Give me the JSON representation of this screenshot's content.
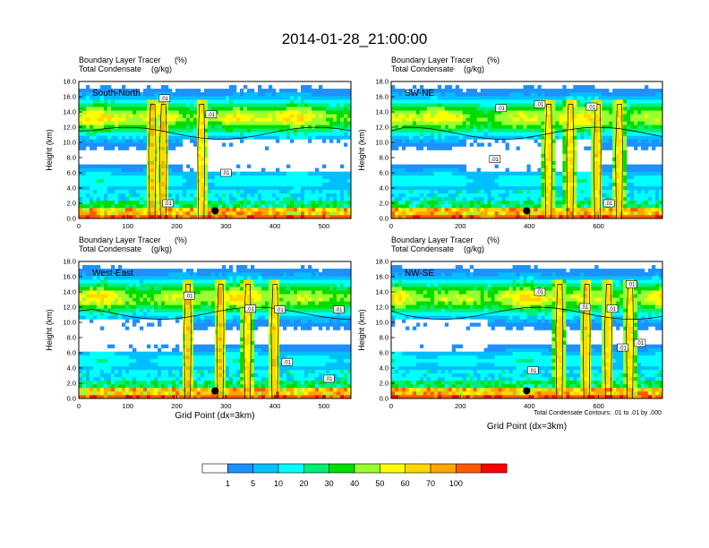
{
  "title": "2014-01-28_21:00:00",
  "colors": {
    "levels": [
      "#ffffff",
      "#1e90ff",
      "#00bfff",
      "#00ffff",
      "#00ee76",
      "#00dd00",
      "#9aff32",
      "#ffff00",
      "#ffd700",
      "#ffa500",
      "#ff5a00",
      "#ff0000"
    ],
    "axis": "#000000",
    "contour": "#000000"
  },
  "chart_data": [
    {
      "type": "heatmap",
      "panel_label": "South-North",
      "subtitle_left_line1": "Boundary Layer Tracer",
      "subtitle_left_line2": "Total Condensate",
      "subtitle_unit_line1": "(%)",
      "subtitle_unit_line2": "(g/kg)",
      "xlabel": "",
      "ylabel": "Height (km)",
      "xlim": [
        0,
        555
      ],
      "ylim": [
        0,
        18
      ],
      "xticks": [
        "0",
        "100",
        "200",
        "300",
        "400",
        "500"
      ],
      "yticks": [
        "0.0",
        "2.0",
        "4.0",
        "6.0",
        "8.0",
        "10.0",
        "12.0",
        "14.0",
        "16.0",
        "18.0"
      ],
      "marker": {
        "x": 278,
        "y": 1.0
      },
      "contour_labels": [
        {
          "text": ".01",
          "x": 270,
          "y": 13.7
        },
        {
          "text": ".01",
          "x": 300,
          "y": 6.0
        },
        {
          "text": ".01",
          "x": 175,
          "y": 15.8
        },
        {
          "text": ".01",
          "x": 182,
          "y": 2.0
        }
      ]
    },
    {
      "type": "heatmap",
      "panel_label": "SW-NE",
      "subtitle_left_line1": "Boundary Layer Tracer",
      "subtitle_left_line2": "Total Condensate",
      "subtitle_unit_line1": "(%)",
      "subtitle_unit_line2": "(g/kg)",
      "xlabel": "",
      "ylabel": "Height (km)",
      "xlim": [
        0,
        785
      ],
      "ylim": [
        0,
        18
      ],
      "xticks": [
        "0",
        "200",
        "400",
        "600"
      ],
      "yticks": [
        "0.0",
        "2.0",
        "4.0",
        "6.0",
        "8.0",
        "10.0",
        "12.0",
        "14.0",
        "16.0",
        "18.0"
      ],
      "marker": {
        "x": 392,
        "y": 1.0
      },
      "contour_labels": [
        {
          "text": ".01",
          "x": 318,
          "y": 14.5
        },
        {
          "text": ".01",
          "x": 430,
          "y": 15.0
        },
        {
          "text": ".01",
          "x": 580,
          "y": 14.7
        },
        {
          "text": ".01",
          "x": 300,
          "y": 7.8
        },
        {
          "text": ".01",
          "x": 630,
          "y": 2.0
        }
      ]
    },
    {
      "type": "heatmap",
      "panel_label": "West-East",
      "subtitle_left_line1": "Boundary Layer Tracer",
      "subtitle_left_line2": "Total Condensate",
      "subtitle_unit_line1": "(%)",
      "subtitle_unit_line2": "(g/kg)",
      "xlabel": "Grid Point (dx=3km)",
      "ylabel": "Height (km)",
      "xlim": [
        0,
        555
      ],
      "ylim": [
        0,
        18
      ],
      "xticks": [
        "0",
        "100",
        "200",
        "300",
        "400",
        "500"
      ],
      "yticks": [
        "0.0",
        "2.0",
        "4.0",
        "6.0",
        "8.0",
        "10.0",
        "12.0",
        "14.0",
        "16.0",
        "18.0"
      ],
      "marker": {
        "x": 278,
        "y": 1.0
      },
      "contour_labels": [
        {
          "text": ".01",
          "x": 225,
          "y": 13.5
        },
        {
          "text": ".01",
          "x": 350,
          "y": 11.8
        },
        {
          "text": ".01",
          "x": 410,
          "y": 11.7
        },
        {
          "text": ".01",
          "x": 530,
          "y": 11.7
        },
        {
          "text": ".01",
          "x": 425,
          "y": 4.8
        },
        {
          "text": ".01",
          "x": 510,
          "y": 2.6
        }
      ]
    },
    {
      "type": "heatmap",
      "panel_label": "NW-SE",
      "subtitle_left_line1": "Boundary Layer Tracer",
      "subtitle_left_line2": "Total Condensate",
      "subtitle_unit_line1": "(%)",
      "subtitle_unit_line2": "(g/kg)",
      "xlabel": "Grid Point (dx=3km)",
      "ylabel": "Height (km)",
      "xlim": [
        0,
        785
      ],
      "ylim": [
        0,
        18
      ],
      "xticks": [
        "0",
        "200",
        "400",
        "600"
      ],
      "yticks": [
        "0.0",
        "2.0",
        "4.0",
        "6.0",
        "8.0",
        "10.0",
        "12.0",
        "14.0",
        "16.0",
        "18.0"
      ],
      "marker": {
        "x": 392,
        "y": 1.0
      },
      "contour_labels": [
        {
          "text": ".01",
          "x": 430,
          "y": 14.0
        },
        {
          "text": ".01",
          "x": 560,
          "y": 12.0
        },
        {
          "text": ".01",
          "x": 640,
          "y": 11.8
        },
        {
          "text": ".01",
          "x": 695,
          "y": 15.0
        },
        {
          "text": ".01",
          "x": 670,
          "y": 6.7
        },
        {
          "text": ".01",
          "x": 410,
          "y": 3.7
        },
        {
          "text": ".01",
          "x": 720,
          "y": 7.3
        }
      ]
    }
  ],
  "contour_note": "Total Condensate Contours: .01 to .01 by .000",
  "colorbar": {
    "labels": [
      "1",
      "5",
      "10",
      "20",
      "30",
      "40",
      "50",
      "60",
      "70",
      "100"
    ]
  }
}
